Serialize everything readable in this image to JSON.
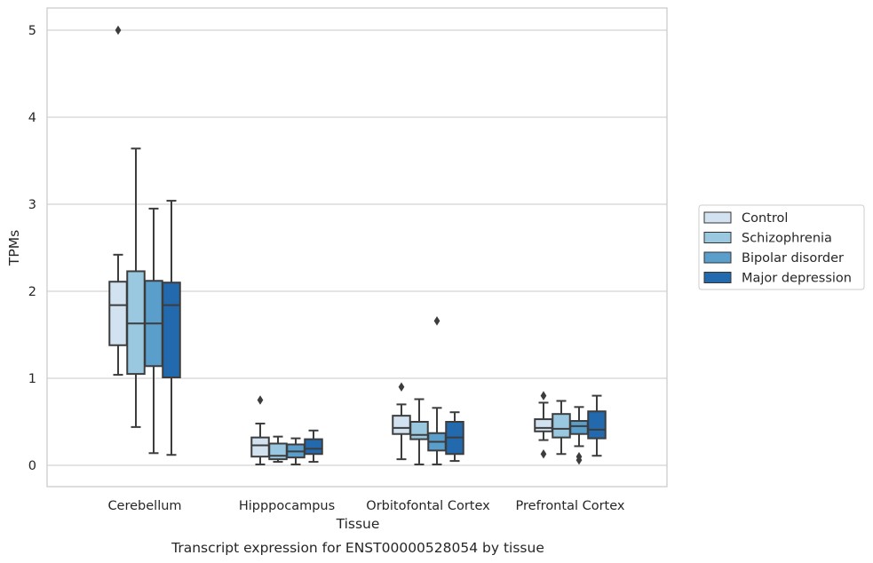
{
  "chart_data": {
    "type": "boxplot",
    "caption": "Transcript expression for ENST00000528054 by tissue",
    "xlabel": "Tissue",
    "ylabel": "TPMs",
    "ylim": [
      -0.25,
      5.25
    ],
    "yticks": [
      0,
      1,
      2,
      3,
      4,
      5
    ],
    "grid": true,
    "legend_position": "right",
    "categories": [
      "Cerebellum",
      "Hipppocampus",
      "Orbitofontal Cortex",
      "Prefrontal Cortex"
    ],
    "series": [
      {
        "name": "Control",
        "color": "#d2e2f1",
        "boxes": [
          {
            "whislo": 1.04,
            "q1": 1.38,
            "med": 1.84,
            "q3": 2.11,
            "whishi": 2.42,
            "fliers": [
              5.0
            ]
          },
          {
            "whislo": 0.01,
            "q1": 0.1,
            "med": 0.23,
            "q3": 0.32,
            "whishi": 0.48,
            "fliers": [
              0.75
            ]
          },
          {
            "whislo": 0.07,
            "q1": 0.36,
            "med": 0.43,
            "q3": 0.57,
            "whishi": 0.7,
            "fliers": [
              0.9
            ]
          },
          {
            "whislo": 0.29,
            "q1": 0.39,
            "med": 0.43,
            "q3": 0.53,
            "whishi": 0.72,
            "fliers": [
              0.8,
              0.13
            ]
          }
        ]
      },
      {
        "name": "Schizophrenia",
        "color": "#9ac8e0",
        "boxes": [
          {
            "whislo": 0.44,
            "q1": 1.05,
            "med": 1.63,
            "q3": 2.23,
            "whishi": 3.64,
            "fliers": []
          },
          {
            "whislo": 0.04,
            "q1": 0.07,
            "med": 0.11,
            "q3": 0.25,
            "whishi": 0.33,
            "fliers": []
          },
          {
            "whislo": 0.01,
            "q1": 0.3,
            "med": 0.35,
            "q3": 0.5,
            "whishi": 0.76,
            "fliers": []
          },
          {
            "whislo": 0.13,
            "q1": 0.32,
            "med": 0.42,
            "q3": 0.59,
            "whishi": 0.74,
            "fliers": []
          }
        ]
      },
      {
        "name": "Bipolar disorder",
        "color": "#5a9ecc",
        "boxes": [
          {
            "whislo": 0.14,
            "q1": 1.14,
            "med": 1.63,
            "q3": 2.12,
            "whishi": 2.95,
            "fliers": []
          },
          {
            "whislo": 0.01,
            "q1": 0.09,
            "med": 0.16,
            "q3": 0.24,
            "whishi": 0.31,
            "fliers": []
          },
          {
            "whislo": 0.01,
            "q1": 0.17,
            "med": 0.27,
            "q3": 0.37,
            "whishi": 0.66,
            "fliers": [
              1.66
            ]
          },
          {
            "whislo": 0.22,
            "q1": 0.36,
            "med": 0.45,
            "q3": 0.51,
            "whishi": 0.67,
            "fliers": [
              0.1,
              0.06
            ]
          }
        ]
      },
      {
        "name": "Major depression",
        "color": "#2369ad",
        "boxes": [
          {
            "whislo": 0.12,
            "q1": 1.01,
            "med": 1.84,
            "q3": 2.1,
            "whishi": 3.04,
            "fliers": []
          },
          {
            "whislo": 0.04,
            "q1": 0.13,
            "med": 0.19,
            "q3": 0.3,
            "whishi": 0.4,
            "fliers": []
          },
          {
            "whislo": 0.05,
            "q1": 0.13,
            "med": 0.32,
            "q3": 0.5,
            "whishi": 0.61,
            "fliers": []
          },
          {
            "whislo": 0.11,
            "q1": 0.31,
            "med": 0.41,
            "q3": 0.62,
            "whishi": 0.8,
            "fliers": []
          }
        ]
      }
    ]
  }
}
